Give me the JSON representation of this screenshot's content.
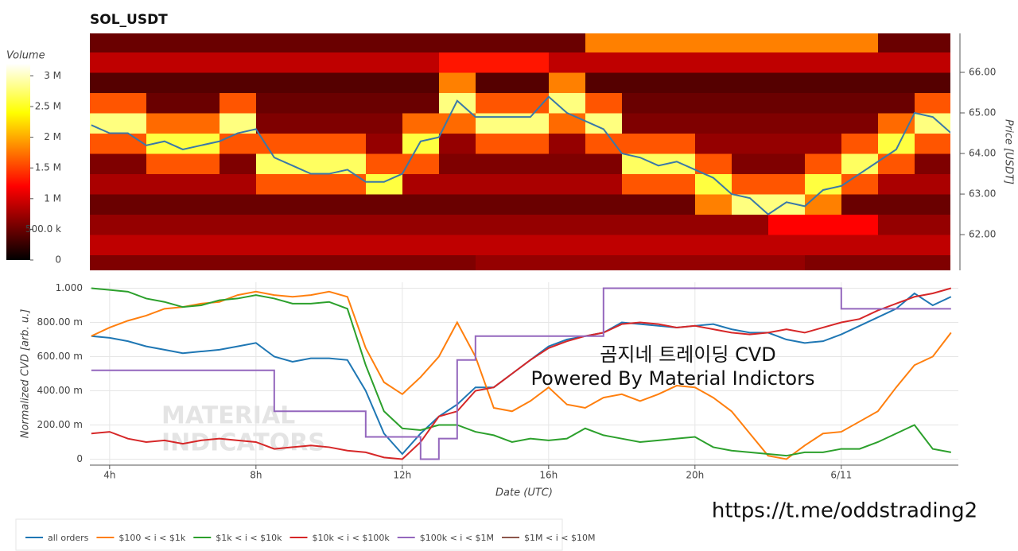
{
  "chart_data": [
    {
      "type": "heatmap",
      "title": "SOL_USDT",
      "xlim": [
        3.46,
        26.98
      ],
      "ylim": [
        61.12,
        66.96
      ],
      "y_label": "Price [USDT]",
      "yticks": [
        {
          "value": 62,
          "label": "62.00"
        },
        {
          "value": 63,
          "label": "63.00"
        },
        {
          "value": 64,
          "label": "64.00"
        },
        {
          "value": 65,
          "label": "65.00"
        },
        {
          "value": 66,
          "label": "66.00"
        }
      ],
      "x_bins": [
        3,
        4,
        5,
        6,
        7,
        8,
        9,
        10,
        11,
        12,
        13,
        14,
        15,
        16,
        17,
        18,
        19,
        20,
        21,
        22,
        23,
        24,
        25,
        26,
        27
      ],
      "y_bins": [
        61.0,
        61.5,
        62.0,
        62.5,
        63.0,
        63.5,
        64.0,
        64.5,
        65.0,
        65.5,
        66.0,
        66.5,
        67.0
      ],
      "z": [
        [
          0.6,
          0.6,
          0.6,
          0.6,
          0.6,
          0.6,
          0.6,
          0.6,
          0.6,
          0.6,
          0.6,
          0.7,
          0.7,
          0.7,
          0.7,
          0.7,
          0.7,
          0.7,
          0.7,
          0.7,
          0.6,
          0.6,
          0.6,
          0.6
        ],
        [
          0.9,
          0.9,
          0.9,
          0.9,
          0.9,
          0.9,
          0.9,
          0.9,
          0.9,
          0.9,
          0.9,
          0.9,
          0.9,
          0.9,
          0.9,
          0.9,
          0.9,
          0.9,
          0.9,
          0.9,
          0.9,
          0.9,
          0.9,
          0.9
        ],
        [
          0.7,
          0.7,
          0.7,
          0.7,
          0.7,
          0.7,
          0.7,
          0.7,
          0.7,
          0.7,
          0.7,
          0.7,
          0.7,
          0.7,
          0.7,
          0.7,
          0.7,
          0.7,
          0.7,
          1.2,
          1.2,
          1.2,
          0.7,
          0.7
        ],
        [
          0.5,
          0.5,
          0.5,
          0.5,
          0.5,
          0.5,
          0.5,
          0.5,
          0.5,
          0.5,
          0.5,
          0.5,
          0.5,
          0.5,
          0.5,
          0.5,
          0.5,
          1.8,
          2.8,
          2.8,
          1.8,
          0.5,
          0.5,
          0.5
        ],
        [
          0.8,
          0.8,
          0.8,
          0.8,
          0.8,
          1.6,
          1.6,
          1.6,
          2.6,
          0.8,
          0.8,
          0.8,
          0.8,
          0.8,
          0.8,
          1.6,
          1.6,
          2.6,
          1.6,
          1.6,
          2.6,
          1.6,
          0.8,
          0.8
        ],
        [
          0.6,
          0.6,
          1.6,
          1.6,
          0.6,
          2.7,
          2.7,
          2.7,
          1.6,
          1.6,
          0.6,
          0.6,
          0.6,
          0.6,
          0.6,
          2.7,
          2.7,
          1.6,
          0.6,
          0.6,
          1.6,
          2.7,
          1.6,
          0.6
        ],
        [
          1.6,
          1.6,
          2.6,
          2.6,
          1.6,
          1.6,
          1.6,
          1.6,
          0.7,
          2.6,
          0.7,
          1.6,
          1.6,
          0.7,
          1.6,
          1.6,
          1.6,
          0.7,
          0.7,
          0.7,
          0.7,
          1.6,
          2.6,
          1.6
        ],
        [
          2.8,
          2.8,
          1.7,
          1.7,
          2.8,
          0.6,
          0.6,
          0.6,
          0.6,
          1.7,
          1.7,
          2.8,
          2.8,
          1.7,
          2.8,
          0.6,
          0.6,
          0.6,
          0.6,
          0.6,
          0.6,
          0.6,
          1.7,
          2.8
        ],
        [
          1.6,
          1.6,
          0.5,
          0.5,
          1.6,
          0.5,
          0.5,
          0.5,
          0.5,
          0.5,
          2.8,
          1.6,
          1.6,
          2.8,
          1.6,
          0.5,
          0.5,
          0.5,
          0.5,
          0.5,
          0.5,
          0.5,
          0.5,
          1.6
        ],
        [
          0.4,
          0.4,
          0.4,
          0.4,
          0.4,
          0.4,
          0.4,
          0.4,
          0.4,
          0.4,
          1.8,
          0.4,
          0.4,
          1.8,
          0.4,
          0.4,
          0.4,
          0.4,
          0.4,
          0.4,
          0.4,
          0.4,
          0.4,
          0.4
        ],
        [
          0.9,
          0.9,
          0.9,
          0.9,
          0.9,
          0.9,
          0.9,
          0.9,
          0.9,
          0.9,
          1.3,
          1.3,
          1.3,
          0.9,
          0.9,
          0.9,
          0.9,
          0.9,
          0.9,
          0.9,
          0.9,
          0.9,
          0.9,
          0.9
        ],
        [
          0.5,
          0.5,
          0.5,
          0.5,
          0.5,
          0.5,
          0.5,
          0.5,
          0.5,
          0.5,
          0.5,
          0.5,
          0.5,
          0.5,
          1.8,
          1.8,
          1.8,
          1.8,
          1.8,
          1.8,
          1.8,
          1.8,
          0.5,
          0.5
        ]
      ],
      "colormap": "hot",
      "zlim": [
        0,
        3.2
      ],
      "colorbar_label": "Volume",
      "colorbar_ticks": [
        0,
        {
          "value": 0.5,
          "label": "500.0 k"
        },
        {
          "value": 1,
          "label": "1 M"
        },
        {
          "value": 1.5,
          "label": "1.5 M"
        },
        {
          "value": 2,
          "label": "2 M"
        },
        {
          "value": 2.5,
          "label": "2.5 M"
        },
        {
          "value": 3,
          "label": "3 M"
        }
      ],
      "price_line": {
        "color": "#3a78a8",
        "x": [
          3.5,
          4,
          4.5,
          5,
          5.5,
          6,
          6.5,
          7,
          7.5,
          8,
          8.5,
          9,
          9.5,
          10,
          10.5,
          11,
          11.5,
          12,
          12.5,
          13,
          13.5,
          14,
          14.5,
          15,
          15.5,
          16,
          16.5,
          17,
          17.5,
          18,
          18.5,
          19,
          19.5,
          20,
          20.5,
          21,
          21.5,
          22,
          22.5,
          23,
          23.5,
          24,
          24.5,
          25,
          25.5,
          26,
          26.5,
          27
        ],
        "values": [
          64.7,
          64.5,
          64.5,
          64.2,
          64.3,
          64.1,
          64.2,
          64.3,
          64.5,
          64.6,
          63.9,
          63.7,
          63.5,
          63.5,
          63.6,
          63.3,
          63.3,
          63.5,
          64.3,
          64.4,
          65.3,
          64.9,
          64.9,
          64.9,
          64.9,
          65.4,
          65.0,
          64.8,
          64.6,
          64.0,
          63.9,
          63.7,
          63.8,
          63.6,
          63.4,
          63.0,
          62.9,
          62.5,
          62.8,
          62.7,
          63.1,
          63.2,
          63.5,
          63.8,
          64.1,
          65.0,
          64.9,
          64.5
        ]
      }
    },
    {
      "type": "line",
      "x_label": "Date (UTC)",
      "y_label": "Normalized CVD [arb. u.]",
      "xlim": [
        3.46,
        27.2
      ],
      "xticks": [
        {
          "value": 4,
          "label": "4h"
        },
        {
          "value": 8,
          "label": "8h"
        },
        {
          "value": 12,
          "label": "12h"
        },
        {
          "value": 16,
          "label": "16h"
        },
        {
          "value": 20,
          "label": "20h"
        },
        {
          "value": 24,
          "label": "6/11"
        }
      ],
      "ylim": [
        -0.035,
        1.035
      ],
      "yticks": [
        0,
        {
          "value": 0.2,
          "label": "200.00 m"
        },
        {
          "value": 0.4,
          "label": "400.00 m"
        },
        {
          "value": 0.6,
          "label": "600.00 m"
        },
        {
          "value": 0.8,
          "label": "800.00 m"
        },
        {
          "value": 1,
          "label": "1.000"
        }
      ],
      "grid": true,
      "legend": "bottom-left",
      "x": [
        3.5,
        4,
        4.5,
        5,
        5.5,
        6,
        6.5,
        7,
        7.5,
        8,
        8.5,
        9,
        9.5,
        10,
        10.5,
        11,
        11.5,
        12,
        12.5,
        13,
        13.5,
        14,
        14.5,
        15,
        15.5,
        16,
        16.5,
        17,
        17.5,
        18,
        18.5,
        19,
        19.5,
        20,
        20.5,
        21,
        21.5,
        22,
        22.5,
        23,
        23.5,
        24,
        24.5,
        25,
        25.5,
        26,
        26.5,
        27
      ],
      "series": [
        {
          "name": "all orders",
          "color": "#1f77b4",
          "values": [
            0.72,
            0.71,
            0.69,
            0.66,
            0.64,
            0.62,
            0.63,
            0.64,
            0.66,
            0.68,
            0.6,
            0.57,
            0.59,
            0.59,
            0.58,
            0.4,
            0.15,
            0.03,
            0.15,
            0.25,
            0.32,
            0.42,
            0.42,
            0.5,
            0.58,
            0.66,
            0.7,
            0.72,
            0.74,
            0.8,
            0.79,
            0.78,
            0.77,
            0.78,
            0.79,
            0.76,
            0.74,
            0.74,
            0.7,
            0.68,
            0.69,
            0.73,
            0.78,
            0.83,
            0.88,
            0.97,
            0.9,
            0.95
          ]
        },
        {
          "name": "$100 < i < $1k",
          "color": "#ff7f0e",
          "values": [
            0.72,
            0.77,
            0.81,
            0.84,
            0.88,
            0.89,
            0.91,
            0.92,
            0.96,
            0.98,
            0.96,
            0.95,
            0.96,
            0.98,
            0.95,
            0.65,
            0.45,
            0.38,
            0.48,
            0.6,
            0.8,
            0.6,
            0.3,
            0.28,
            0.34,
            0.42,
            0.32,
            0.3,
            0.36,
            0.38,
            0.34,
            0.38,
            0.43,
            0.42,
            0.36,
            0.28,
            0.15,
            0.02,
            0.0,
            0.08,
            0.15,
            0.16,
            0.22,
            0.28,
            0.42,
            0.55,
            0.6,
            0.74
          ]
        },
        {
          "name": "$1k < i < $10k",
          "color": "#2ca02c",
          "values": [
            1.0,
            0.99,
            0.98,
            0.94,
            0.92,
            0.89,
            0.9,
            0.93,
            0.94,
            0.96,
            0.94,
            0.91,
            0.91,
            0.92,
            0.88,
            0.55,
            0.28,
            0.18,
            0.17,
            0.2,
            0.2,
            0.16,
            0.14,
            0.1,
            0.12,
            0.11,
            0.12,
            0.18,
            0.14,
            0.12,
            0.1,
            0.11,
            0.12,
            0.13,
            0.07,
            0.05,
            0.04,
            0.03,
            0.02,
            0.04,
            0.04,
            0.06,
            0.06,
            0.1,
            0.15,
            0.2,
            0.06,
            0.04
          ]
        },
        {
          "name": "$10k < i < $100k",
          "color": "#d62728",
          "values": [
            0.15,
            0.16,
            0.12,
            0.1,
            0.11,
            0.09,
            0.11,
            0.12,
            0.11,
            0.1,
            0.06,
            0.07,
            0.08,
            0.07,
            0.05,
            0.04,
            0.01,
            0.0,
            0.1,
            0.25,
            0.28,
            0.4,
            0.42,
            0.5,
            0.58,
            0.65,
            0.69,
            0.72,
            0.74,
            0.79,
            0.8,
            0.79,
            0.77,
            0.78,
            0.76,
            0.74,
            0.73,
            0.74,
            0.76,
            0.74,
            0.77,
            0.8,
            0.82,
            0.87,
            0.91,
            0.95,
            0.97,
            1.0
          ]
        },
        {
          "name": "$100k < i < $1M",
          "color": "#9467bd",
          "step": "after",
          "values": [
            0.52,
            0.52,
            0.52,
            0.52,
            0.52,
            0.52,
            0.52,
            0.52,
            0.52,
            0.52,
            0.28,
            0.28,
            0.28,
            0.28,
            0.28,
            0.13,
            0.13,
            0.13,
            0.0,
            0.12,
            0.58,
            0.72,
            0.72,
            0.72,
            0.72,
            0.72,
            0.72,
            0.72,
            1.0,
            1.0,
            1.0,
            1.0,
            1.0,
            1.0,
            1.0,
            1.0,
            1.0,
            1.0,
            1.0,
            1.0,
            1.0,
            0.88,
            0.88,
            0.88,
            0.88,
            0.88,
            0.88,
            0.88
          ]
        },
        {
          "name": "$1M < i < $10M",
          "color": "#8c564b",
          "values": [
            null,
            null,
            null,
            null,
            null,
            null,
            null,
            null,
            null,
            null,
            null,
            null,
            null,
            null,
            null,
            null,
            null,
            null,
            null,
            null,
            null,
            null,
            null,
            null,
            null,
            null,
            null,
            null,
            null,
            null,
            null,
            null,
            null,
            null,
            null,
            null,
            null,
            null,
            null,
            null,
            null,
            null,
            null,
            null,
            null,
            null,
            null,
            null
          ]
        }
      ],
      "watermark": [
        "MATERIAL",
        "INDICATORS"
      ],
      "annotations": [
        "곰지네 트레이딩 CVD",
        "Powered By Material Indictors"
      ],
      "footer_link": "https://t.me/oddstrading2"
    }
  ]
}
